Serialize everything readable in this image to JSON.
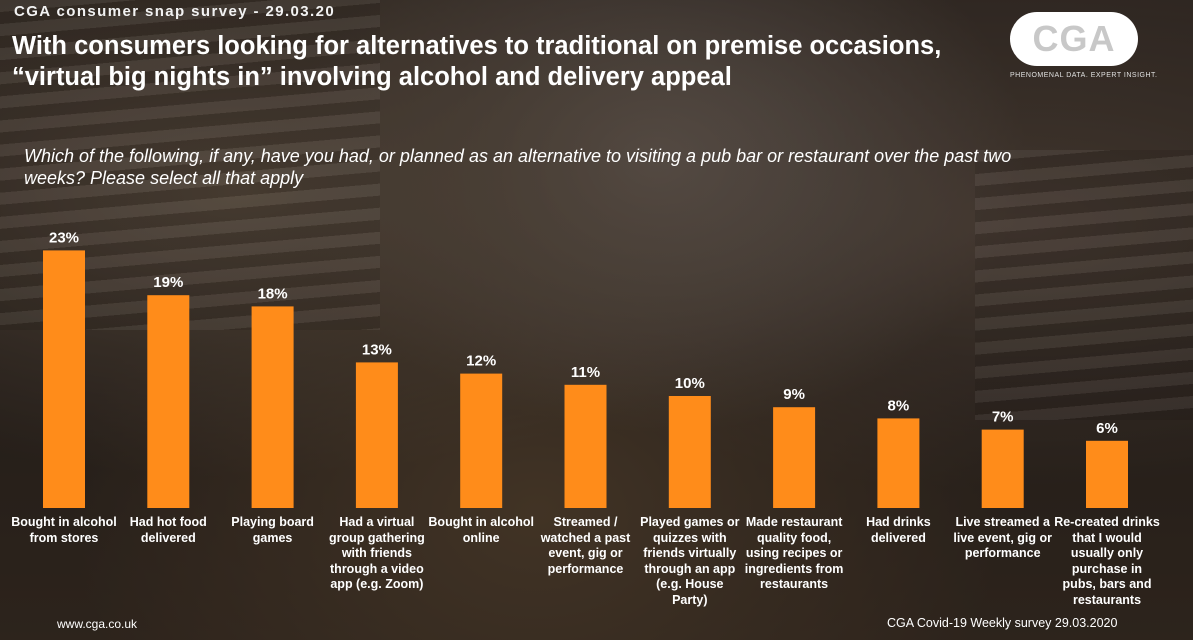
{
  "survey_tag": "CGA consumer snap survey - 29.03.20",
  "headline": "With consumers looking for alternatives to traditional on premise occasions, “virtual big nights in” involving alcohol and delivery appeal",
  "logo": {
    "text": "CGA",
    "tagline": "PHENOMENAL DATA. EXPERT INSIGHT."
  },
  "question": "Which of the following, if any, have you had, or planned as an alternative to visiting a pub bar or restaurant over the past two weeks? Please select all that apply",
  "footer": {
    "website": "www.cga.co.uk",
    "source": "CGA Covid-19 Weekly survey 29.03.2020"
  },
  "chart_data": {
    "type": "bar",
    "categories": [
      "Bought in alcohol from stores",
      "Had hot food delivered",
      "Playing board games",
      "Had a virtual group gathering with friends through a video app (e.g. Zoom)",
      "Bought in alcohol online",
      "Streamed / watched a past event, gig or performance",
      "Played games or quizzes with friends virtually through an app (e.g. House Party)",
      "Made restaurant quality food, using recipes or ingredients from restaurants",
      "Had drinks delivered",
      "Live streamed a live event, gig or performance",
      "Re-created drinks that I would usually only purchase in pubs, bars and restaurants"
    ],
    "values": [
      23,
      19,
      18,
      13,
      12,
      11,
      10,
      9,
      8,
      7,
      6
    ],
    "value_labels": [
      "23%",
      "19%",
      "18%",
      "13%",
      "12%",
      "11%",
      "10%",
      "9%",
      "8%",
      "7%",
      "6%"
    ],
    "ylim": [
      0,
      25
    ],
    "bar_color": "#ff8c1a",
    "grid": false
  }
}
